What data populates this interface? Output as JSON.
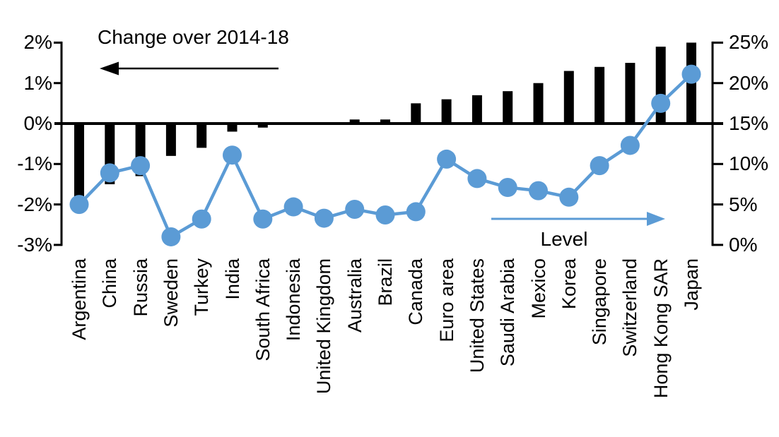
{
  "chart_data": {
    "type": "bar",
    "subtype": "combo-bar-line-dual-axis",
    "title": "",
    "categories": [
      "Argentina",
      "China",
      "Russia",
      "Sweden",
      "Turkey",
      "India",
      "South Africa",
      "Indonesia",
      "United Kingdom",
      "Australia",
      "Brazil",
      "Canada",
      "Euro area",
      "United States",
      "Saudi Arabia",
      "Mexico",
      "Korea",
      "Singapore",
      "Switzerland",
      "Hong Kong SAR",
      "Japan"
    ],
    "series": [
      {
        "name": "Change over 2014-18",
        "type": "bar",
        "axis": "left",
        "color": "#000000",
        "values": [
          -1.8,
          -1.5,
          -1.3,
          -0.8,
          -0.6,
          -0.2,
          -0.1,
          0.0,
          0.0,
          0.1,
          0.1,
          0.5,
          0.6,
          0.7,
          0.8,
          1.0,
          1.3,
          1.4,
          1.5,
          1.9,
          2.0
        ]
      },
      {
        "name": "Level",
        "type": "line",
        "axis": "right",
        "color": "#5B9BD5",
        "values": [
          5.0,
          8.9,
          9.8,
          1.0,
          3.2,
          11.1,
          3.2,
          4.7,
          3.3,
          4.4,
          3.7,
          4.1,
          10.6,
          8.2,
          7.1,
          6.7,
          5.9,
          9.8,
          12.3,
          17.5,
          21.1
        ]
      }
    ],
    "left_axis": {
      "tick_labels": [
        "2%",
        "1%",
        "0%",
        "-1%",
        "-2%",
        "-3%"
      ],
      "tick_values": [
        2,
        1,
        0,
        -1,
        -2,
        -3
      ],
      "range": [
        -3,
        2
      ],
      "unit": "%"
    },
    "right_axis": {
      "tick_labels": [
        "25%",
        "20%",
        "15%",
        "10%",
        "5%",
        "0%"
      ],
      "tick_values": [
        25,
        20,
        15,
        10,
        5,
        0
      ],
      "range": [
        0,
        25
      ],
      "unit": "%"
    },
    "annotations": {
      "bar_series_label": "Change over 2014-18",
      "bar_arrow_direction": "left",
      "line_series_label": "Level",
      "line_arrow_direction": "right"
    },
    "grid": "off",
    "legend_position": "none",
    "background": "#ffffff",
    "accent_color": "#5B9BD5"
  }
}
